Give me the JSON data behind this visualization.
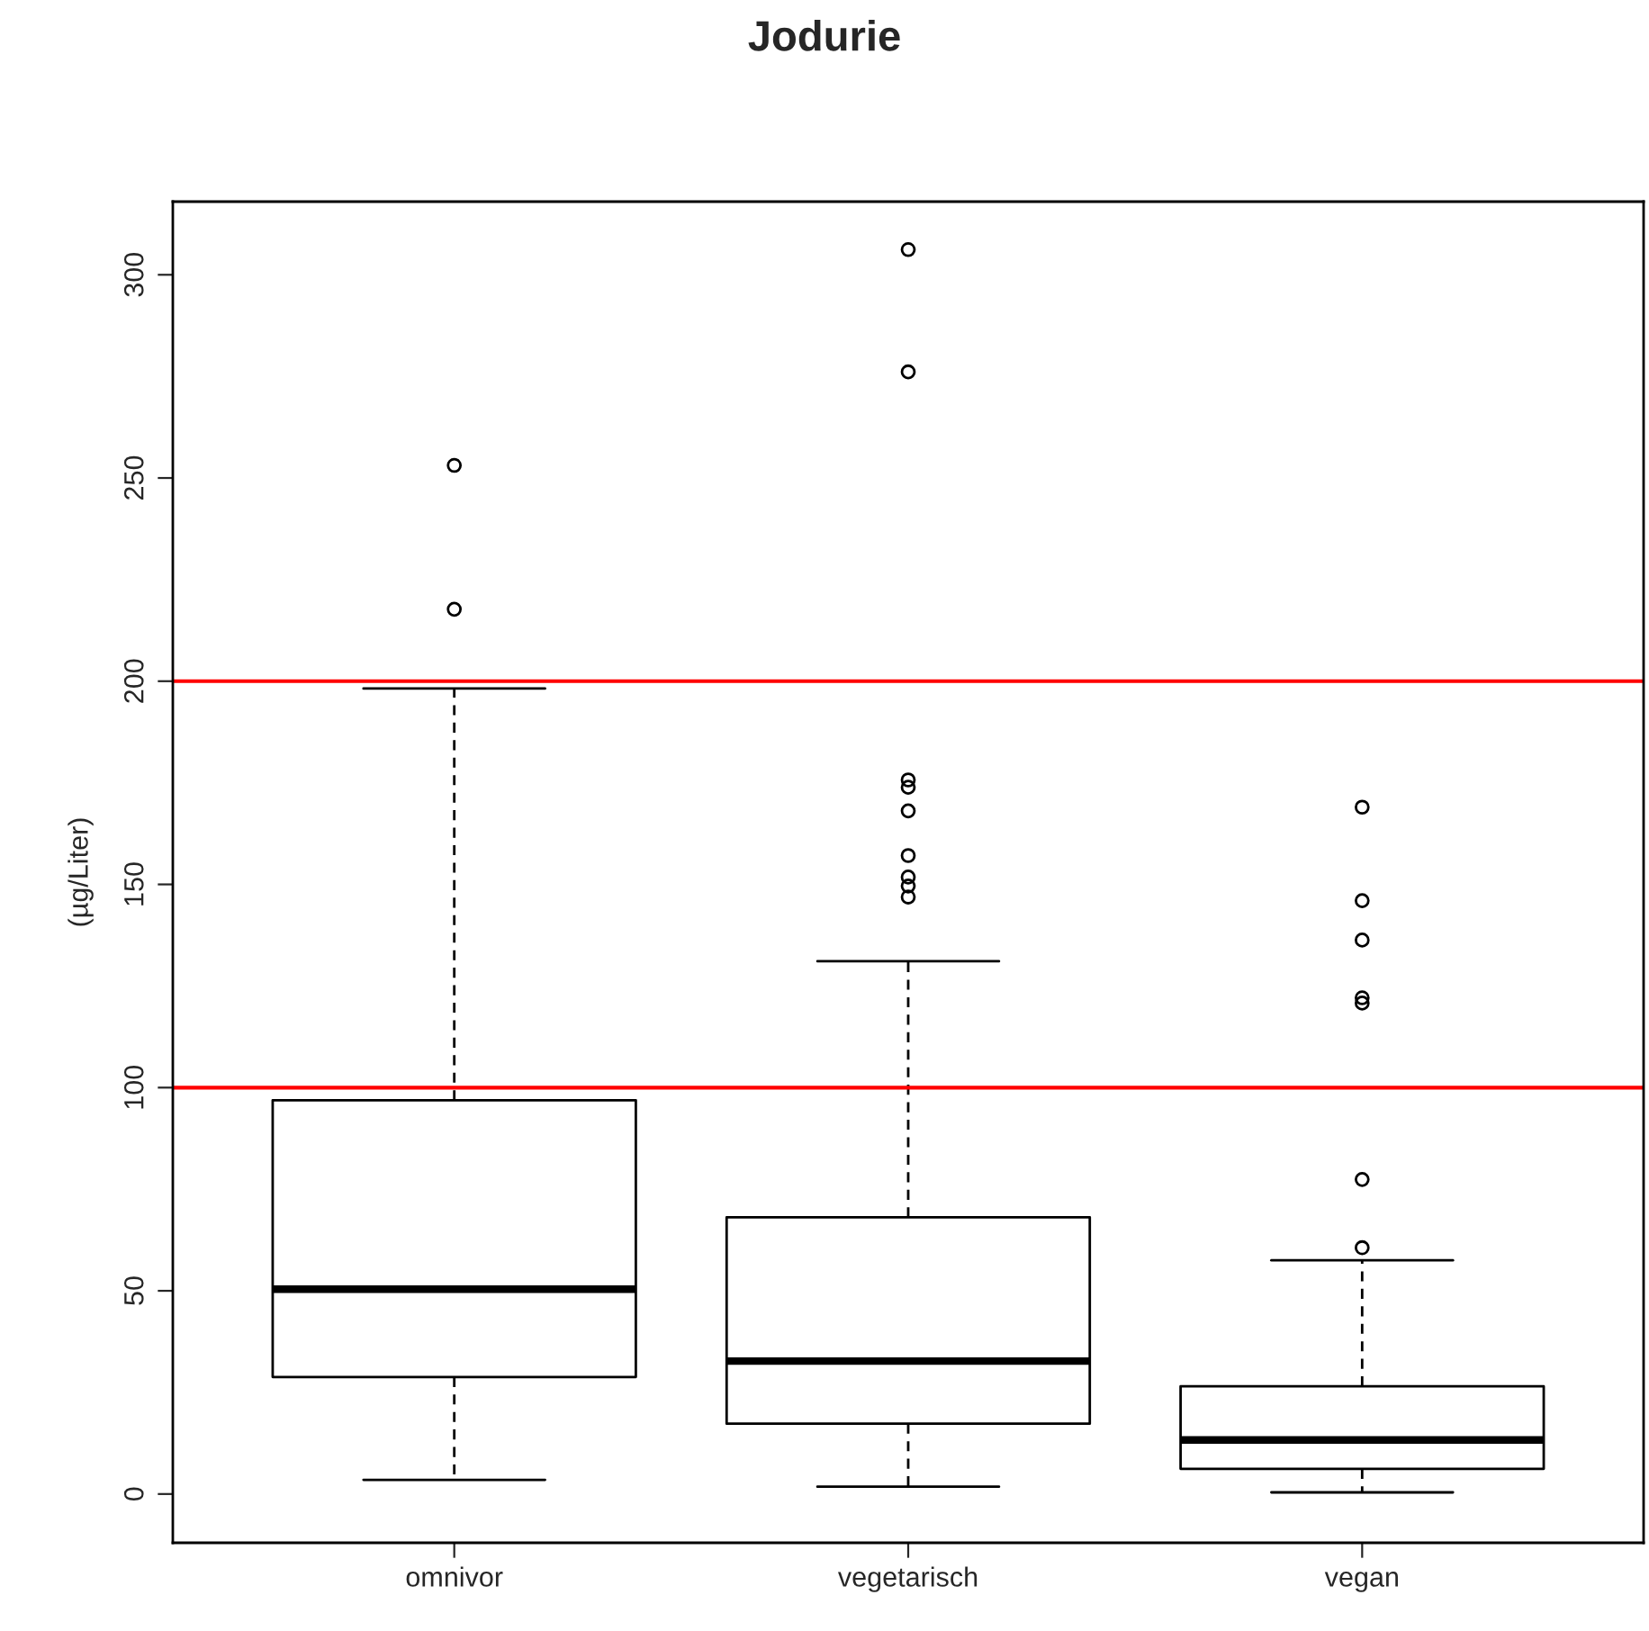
{
  "chart_data": {
    "type": "box",
    "title": "Jodurie",
    "ylabel": "(µg/Liter)",
    "categories": [
      "omnivor",
      "vegetarisch",
      "vegan"
    ],
    "boxes": [
      {
        "low": 3.5,
        "q1": 28.8,
        "median": 50.4,
        "q3": 96.9,
        "high": 198.2,
        "outliers": [
          217.7,
          253.1
        ]
      },
      {
        "low": 1.8,
        "q1": 17.3,
        "median": 32.7,
        "q3": 68.1,
        "high": 131.1,
        "outliers": [
          146.9,
          149.6,
          151.8,
          157.1,
          168.1,
          173.9,
          175.7,
          276.1,
          306.2
        ]
      },
      {
        "low": 0.4,
        "q1": 6.2,
        "median": 13.3,
        "q3": 26.5,
        "high": 57.5,
        "outliers": [
          60.6,
          77.4,
          120.8,
          122.1,
          136.3,
          146.0,
          169.0
        ]
      }
    ],
    "ref_lines": [
      {
        "axis": "y",
        "value": 100,
        "color": "#ff0000"
      },
      {
        "axis": "y",
        "value": 200,
        "color": "#ff0000"
      }
    ],
    "ylim": [
      -12,
      318
    ],
    "yticks": [
      0,
      50,
      100,
      150,
      200,
      250,
      300
    ],
    "grid": false
  }
}
